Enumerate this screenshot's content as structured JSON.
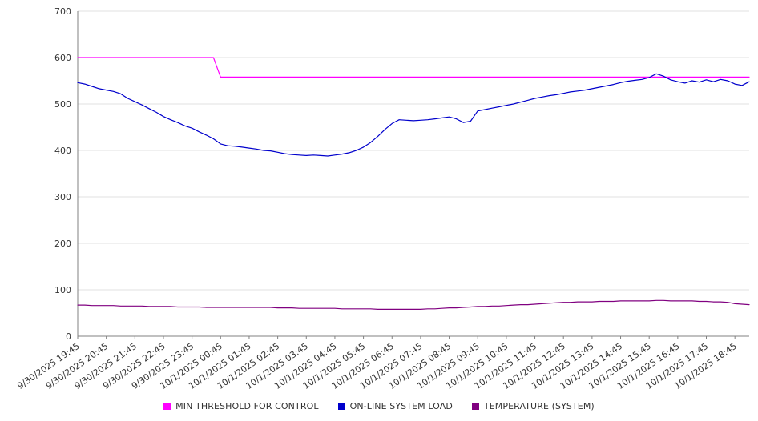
{
  "chart_data": {
    "type": "line",
    "title": "",
    "xlabel": "",
    "ylabel": "",
    "ylim": [
      0,
      700
    ],
    "y_ticks": [
      0,
      100,
      200,
      300,
      400,
      500,
      600,
      700
    ],
    "grid": "horizontal",
    "legend_position": "bottom",
    "x_step_minutes": 15,
    "points_per_tick": 4,
    "x_tick_labels": [
      "9/30/2025 19:45",
      "9/30/2025 20:45",
      "9/30/2025 21:45",
      "9/30/2025 22:45",
      "9/30/2025 23:45",
      "10/1/2025 00:45",
      "10/1/2025 01:45",
      "10/1/2025 02:45",
      "10/1/2025 03:45",
      "10/1/2025 04:45",
      "10/1/2025 05:45",
      "10/1/2025 06:45",
      "10/1/2025 07:45",
      "10/1/2025 08:45",
      "10/1/2025 09:45",
      "10/1/2025 10:45",
      "10/1/2025 11:45",
      "10/1/2025 12:45",
      "10/1/2025 13:45",
      "10/1/2025 14:45",
      "10/1/2025 15:45",
      "10/1/2025 16:45",
      "10/1/2025 17:45",
      "10/1/2025 18:45"
    ],
    "series": [
      {
        "name": "MIN THRESHOLD FOR CONTROL",
        "color": "#ff00ff",
        "values": [
          600,
          600,
          600,
          600,
          600,
          600,
          600,
          600,
          600,
          600,
          600,
          600,
          600,
          600,
          600,
          600,
          600,
          600,
          600,
          600,
          558,
          558,
          558,
          558,
          558,
          558,
          558,
          558,
          558,
          558,
          558,
          558,
          558,
          558,
          558,
          558,
          558,
          558,
          558,
          558,
          558,
          558,
          558,
          558,
          558,
          558,
          558,
          558,
          558,
          558,
          558,
          558,
          558,
          558,
          558,
          558,
          558,
          558,
          558,
          558,
          558,
          558,
          558,
          558,
          558,
          558,
          558,
          558,
          558,
          558,
          558,
          558,
          558,
          558,
          558,
          558,
          558,
          558,
          558,
          558,
          558,
          558,
          558,
          558,
          558,
          558,
          558,
          558,
          558,
          558,
          558,
          558,
          558,
          558,
          558
        ]
      },
      {
        "name": "ON-LINE SYSTEM LOAD",
        "color": "#0000cc",
        "values": [
          546,
          543,
          538,
          533,
          530,
          527,
          522,
          512,
          505,
          498,
          490,
          482,
          473,
          466,
          460,
          453,
          448,
          440,
          433,
          425,
          414,
          410,
          409,
          407,
          405,
          403,
          400,
          399,
          396,
          393,
          391,
          390,
          389,
          390,
          389,
          388,
          390,
          392,
          395,
          400,
          407,
          417,
          430,
          445,
          458,
          466,
          465,
          464,
          465,
          466,
          468,
          470,
          472,
          468,
          460,
          463,
          485,
          488,
          491,
          494,
          497,
          500,
          504,
          508,
          512,
          515,
          518,
          520,
          523,
          526,
          528,
          530,
          533,
          536,
          539,
          542,
          546,
          549,
          551,
          553,
          557,
          565,
          560,
          552,
          548,
          545,
          550,
          547,
          552,
          548,
          553,
          550,
          543,
          540,
          548
        ]
      },
      {
        "name": "TEMPERATURE (SYSTEM)",
        "color": "#800080",
        "values": [
          67,
          67,
          66,
          66,
          66,
          66,
          65,
          65,
          65,
          65,
          64,
          64,
          64,
          64,
          63,
          63,
          63,
          63,
          62,
          62,
          62,
          62,
          62,
          62,
          62,
          62,
          62,
          62,
          61,
          61,
          61,
          60,
          60,
          60,
          60,
          60,
          60,
          59,
          59,
          59,
          59,
          59,
          58,
          58,
          58,
          58,
          58,
          58,
          58,
          59,
          59,
          60,
          61,
          61,
          62,
          63,
          64,
          64,
          65,
          65,
          66,
          67,
          68,
          68,
          69,
          70,
          71,
          72,
          73,
          73,
          74,
          74,
          74,
          75,
          75,
          75,
          76,
          76,
          76,
          76,
          76,
          77,
          77,
          76,
          76,
          76,
          76,
          75,
          75,
          74,
          74,
          73,
          70,
          69,
          68
        ]
      }
    ],
    "axis_color": "#808080",
    "gridline_color": "#e0e0e0",
    "tick_label_color": "#333333"
  }
}
